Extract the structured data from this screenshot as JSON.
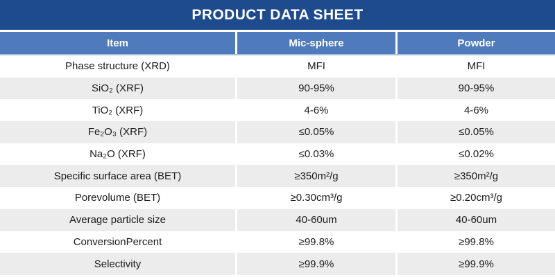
{
  "title": "PRODUCT DATA SHEET",
  "table": {
    "columns": [
      "Item",
      "Mic-sphere",
      "Powder"
    ],
    "rows": [
      [
        "Phase structure (XRD)",
        "MFI",
        "MFI"
      ],
      [
        "SiO₂ (XRF)",
        "90-95%",
        "90-95%"
      ],
      [
        "TiO₂ (XRF)",
        "4-6%",
        "4-6%"
      ],
      [
        "Fe₂O₃ (XRF)",
        "≤0.05%",
        "≤0.05%"
      ],
      [
        "Na₂O (XRF)",
        "≤0.03%",
        "≤0.02%"
      ],
      [
        "Specific surface area (BET)",
        "≥350m²/g",
        "≥350m²/g"
      ],
      [
        "Porevolume (BET)",
        "≥0.30cm³/g",
        "≥0.20cm³/g"
      ],
      [
        "Average particle size",
        "40-60um",
        "40-60um"
      ],
      [
        "ConversionPercent",
        "≥99.8%",
        "≥99.8%"
      ],
      [
        "Selectivity",
        "≥99.9%",
        "≥99.9%"
      ]
    ]
  },
  "colors": {
    "title_bar": "#1E4B8D",
    "header": "#4F7ABC",
    "row_alt": "#ECECEC",
    "header_underline": "#A9BEDC",
    "body_text": "#1B1B1B"
  }
}
